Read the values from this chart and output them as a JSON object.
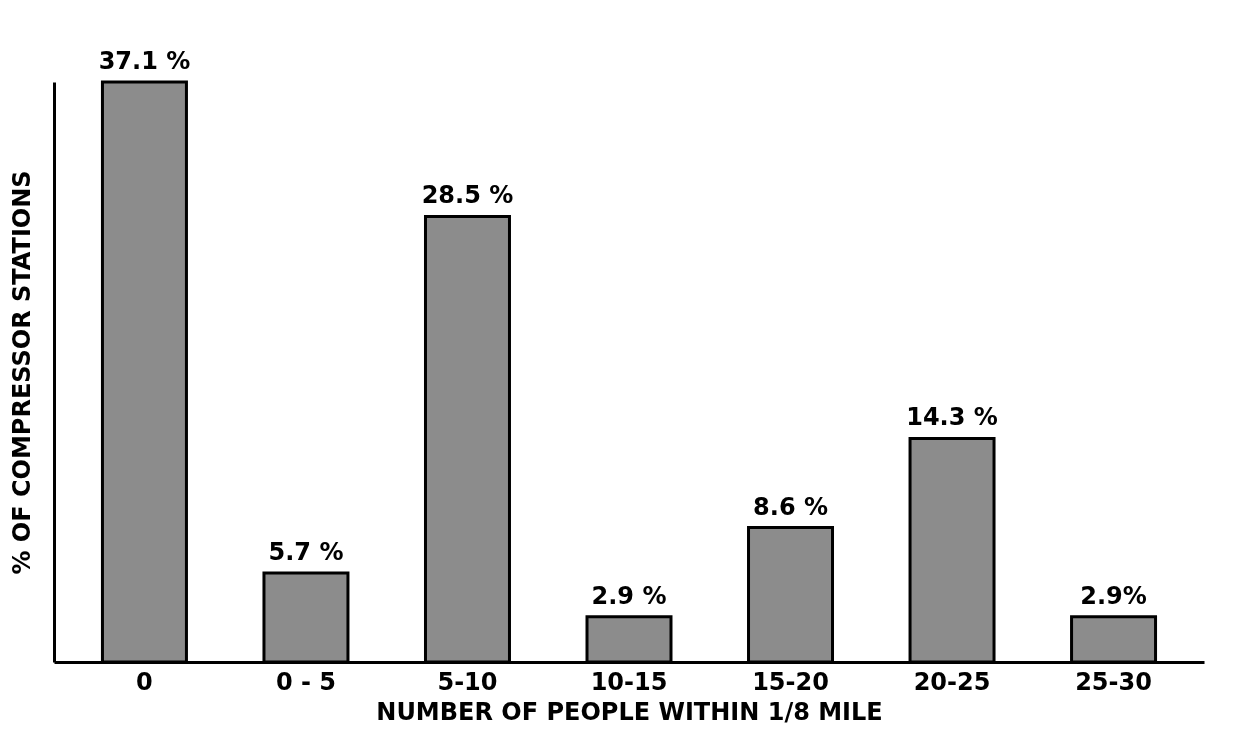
{
  "chart_data": {
    "type": "bar",
    "xlabel": "NUMBER  OF  PEOPLE  WITHIN  1/8  MILE",
    "ylabel": "%  OF  COMPRESSOR  STATIONS",
    "categories": [
      "0",
      "0 - 5",
      "5-10",
      "10-15",
      "15-20",
      "20-25",
      "25-30"
    ],
    "values": [
      37.1,
      5.7,
      28.5,
      2.9,
      8.6,
      14.3,
      2.9
    ],
    "value_labels": [
      "37.1 %",
      "5.7 %",
      "28.5 %",
      "2.9 %",
      "8.6 %",
      "14.3 %",
      "2.9%"
    ],
    "color": "#8c8c8c",
    "tick_labels": "x"
  }
}
